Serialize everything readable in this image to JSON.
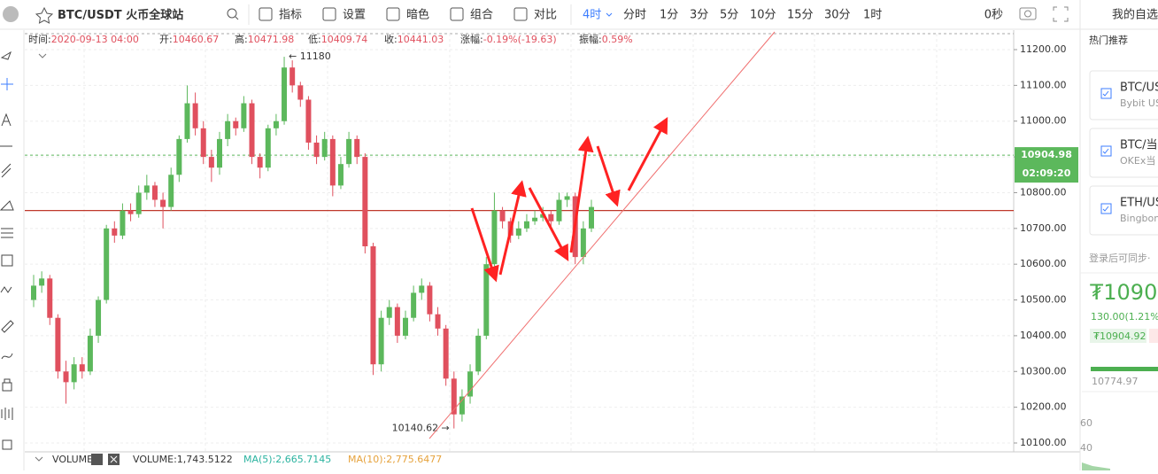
{
  "toolbar": {
    "symbol": "BTC/USDT",
    "exchange": "火币全球站",
    "tools": [
      "指标",
      "设置",
      "暗色",
      "组合",
      "对比"
    ],
    "active_interval": "4时",
    "intervals": [
      "分时",
      "1分",
      "3分",
      "5分",
      "10分",
      "15分",
      "30分",
      "1时"
    ],
    "countdown_label": "0秒"
  },
  "info": [
    {
      "label": "时间:",
      "value": "2020-09-13 04:00"
    },
    {
      "label": "开:",
      "value": "10460.67"
    },
    {
      "label": "高:",
      "value": "10471.98"
    },
    {
      "label": "低:",
      "value": "10409.74"
    },
    {
      "label": "收:",
      "value": "10441.03"
    },
    {
      "label": "涨幅:",
      "value": "-0.19%(-19.63)"
    },
    {
      "label": "振幅:",
      "value": "0.59%"
    }
  ],
  "chart": {
    "type": "candlestick",
    "up_color": "#5cb85c",
    "down_color": "#e0505e",
    "ylim": [
      10070,
      11240
    ],
    "yticks": [
      {
        "value": 10100,
        "label": "10100.00"
      },
      {
        "value": 10200,
        "label": "10200.00"
      },
      {
        "value": 10300,
        "label": "10300.00"
      },
      {
        "value": 10400,
        "label": "10400.00"
      },
      {
        "value": 10500,
        "label": "10500.00"
      },
      {
        "value": 10600,
        "label": "10600.00"
      },
      {
        "value": 10700,
        "label": "10700.00"
      },
      {
        "value": 10800,
        "label": "10800.00"
      },
      {
        "value": 10900,
        "label": "10900.00"
      },
      {
        "value": 11000,
        "label": "11000.00"
      },
      {
        "value": 11100,
        "label": "11100.00"
      },
      {
        "value": 11200,
        "label": "11200.00"
      }
    ],
    "candles": [
      [
        10500,
        10570,
        10480,
        10540
      ],
      [
        10540,
        10580,
        10520,
        10560
      ],
      [
        10560,
        10570,
        10430,
        10450
      ],
      [
        10450,
        10460,
        10280,
        10300
      ],
      [
        10300,
        10330,
        10210,
        10270
      ],
      [
        10270,
        10340,
        10250,
        10320
      ],
      [
        10320,
        10340,
        10280,
        10300
      ],
      [
        10300,
        10420,
        10290,
        10400
      ],
      [
        10400,
        10510,
        10380,
        10500
      ],
      [
        10500,
        10710,
        10490,
        10700
      ],
      [
        10700,
        10720,
        10660,
        10680
      ],
      [
        10680,
        10770,
        10670,
        10750
      ],
      [
        10750,
        10770,
        10720,
        10740
      ],
      [
        10740,
        10820,
        10730,
        10800
      ],
      [
        10800,
        10850,
        10780,
        10820
      ],
      [
        10820,
        10830,
        10760,
        10780
      ],
      [
        10780,
        10800,
        10700,
        10760
      ],
      [
        10760,
        10870,
        10750,
        10850
      ],
      [
        10850,
        10960,
        10830,
        10950
      ],
      [
        10950,
        11100,
        10940,
        11050
      ],
      [
        11050,
        11080,
        10960,
        10980
      ],
      [
        10980,
        11000,
        10880,
        10900
      ],
      [
        10900,
        10920,
        10830,
        10870
      ],
      [
        10870,
        10970,
        10850,
        10950
      ],
      [
        10950,
        11020,
        10930,
        11000
      ],
      [
        11000,
        11010,
        10960,
        10980
      ],
      [
        10980,
        11070,
        10970,
        11050
      ],
      [
        11050,
        11060,
        10880,
        10900
      ],
      [
        10900,
        10910,
        10840,
        10870
      ],
      [
        10870,
        10990,
        10860,
        10980
      ],
      [
        10980,
        11020,
        10960,
        11000
      ],
      [
        11000,
        11180,
        10990,
        11150
      ],
      [
        11150,
        11170,
        11080,
        11100
      ],
      [
        11100,
        11110,
        11040,
        11060
      ],
      [
        11060,
        11070,
        10920,
        10940
      ],
      [
        10940,
        10960,
        10880,
        10900
      ],
      [
        10900,
        10970,
        10890,
        10950
      ],
      [
        10950,
        10960,
        10790,
        10820
      ],
      [
        10820,
        10900,
        10810,
        10880
      ],
      [
        10880,
        10970,
        10870,
        10950
      ],
      [
        10950,
        10960,
        10880,
        10900
      ],
      [
        10900,
        10910,
        10630,
        10650
      ],
      [
        10650,
        10660,
        10290,
        10320
      ],
      [
        10320,
        10470,
        10300,
        10450
      ],
      [
        10450,
        10500,
        10430,
        10480
      ],
      [
        10480,
        10490,
        10380,
        10400
      ],
      [
        10400,
        10470,
        10390,
        10450
      ],
      [
        10450,
        10540,
        10440,
        10520
      ],
      [
        10520,
        10560,
        10500,
        10540
      ],
      [
        10540,
        10550,
        10440,
        10460
      ],
      [
        10460,
        10480,
        10400,
        10420
      ],
      [
        10420,
        10430,
        10260,
        10280
      ],
      [
        10280,
        10300,
        10140.62,
        10180
      ],
      [
        10180,
        10250,
        10160,
        10230
      ],
      [
        10230,
        10320,
        10210,
        10300
      ],
      [
        10300,
        10420,
        10290,
        10400
      ],
      [
        10400,
        10620,
        10390,
        10600
      ],
      [
        10600,
        10800,
        10590,
        10750
      ],
      [
        10750,
        10760,
        10700,
        10720
      ],
      [
        10720,
        10730,
        10660,
        10680
      ],
      [
        10680,
        10720,
        10670,
        10700
      ],
      [
        10700,
        10740,
        10690,
        10720
      ],
      [
        10720,
        10750,
        10710,
        10730
      ],
      [
        10730,
        10760,
        10720,
        10740
      ],
      [
        10740,
        10750,
        10700,
        10720
      ],
      [
        10720,
        10800,
        10710,
        10780
      ],
      [
        10780,
        10800,
        10760,
        10790
      ],
      [
        10790,
        10800,
        10600,
        10620
      ],
      [
        10620,
        10720,
        10600,
        10700
      ],
      [
        10700,
        10780,
        10690,
        10760
      ]
    ],
    "high_label": "← 11180",
    "low_label": "10140.62 →",
    "hline": 10750,
    "last_price": {
      "value": 10904.98,
      "label": "10904.98"
    },
    "timer": "02:09:20"
  },
  "volume": {
    "name": "VOLUME",
    "value": "VOLUME:1,743.5122",
    "ma5": "MA(5):2,665.7145",
    "ma10": "MA(10):2,775.6477"
  },
  "sidebar": {
    "title": "我的自选",
    "hot": "热门推荐",
    "items": [
      {
        "pair": "BTC/US",
        "source": "Bybit US"
      },
      {
        "pair": "BTC/当",
        "source": "OKEx当"
      },
      {
        "pair": "ETH/US",
        "source": "Bingbon"
      }
    ],
    "login": "登录后可同步·",
    "price": "₮1090",
    "change": "130.00(1.21%",
    "tag": "₮10904.92",
    "ref": "10774.97",
    "scale": [
      "60",
      "40"
    ]
  }
}
